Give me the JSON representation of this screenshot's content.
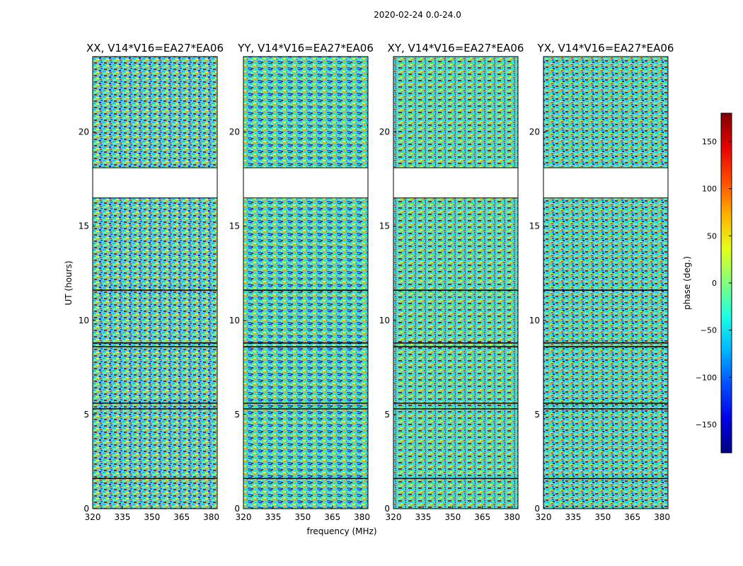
{
  "figure": {
    "suptitle": "2020-02-24 0.0-24.0"
  },
  "chart_data": {
    "type": "heatmap",
    "panels": [
      {
        "title": "XX, V14*V16=EA27*EA06",
        "pol": "XX"
      },
      {
        "title": "YY, V14*V16=EA27*EA06",
        "pol": "YY"
      },
      {
        "title": "XY, V14*V16=EA27*EA06",
        "pol": "XY"
      },
      {
        "title": "YX, V14*V16=EA27*EA06",
        "pol": "YX"
      }
    ],
    "xlabel": "frequency (MHz)",
    "ylabel": "UT (hours)",
    "xlim": [
      320,
      383
    ],
    "ylim": [
      0,
      24
    ],
    "xticks": [
      320,
      335,
      350,
      365,
      380
    ],
    "yticks": [
      0,
      5,
      10,
      15,
      20
    ],
    "flagged_bands_ut": [
      [
        18.1,
        16.5
      ]
    ],
    "colorbar": {
      "label": "phase (deg.)",
      "range": [
        -180,
        180
      ],
      "ticks": [
        150,
        100,
        50,
        0,
        -50,
        -100,
        -150
      ],
      "colormap": "jet"
    },
    "grid": false
  }
}
